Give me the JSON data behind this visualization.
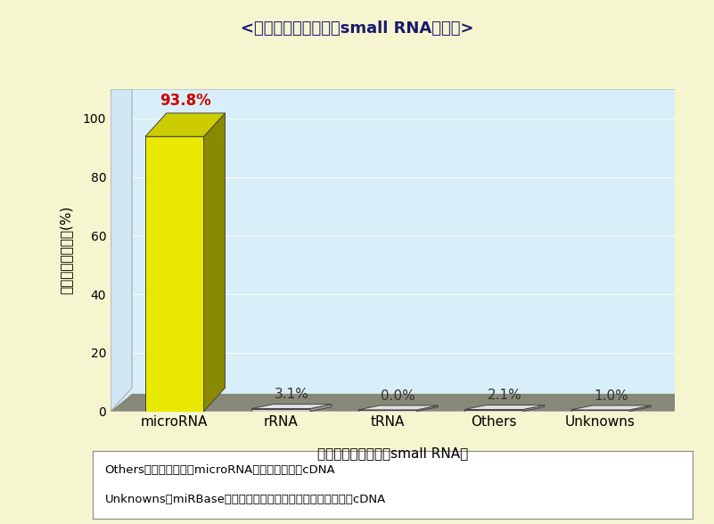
{
  "title": "<クローニングされたsmall RNAの内訳>",
  "categories": [
    "microRNA",
    "rRNA",
    "tRNA",
    "Others",
    "Unknowns"
  ],
  "values": [
    93.8,
    3.1,
    0.0,
    2.1,
    1.0
  ],
  "value_labels": [
    "93.8%",
    "3.1%",
    "0.0%",
    "2.1%",
    "1.0%"
  ],
  "xlabel": "クローニングされたsmall RNA種",
  "ylabel": "クローニング比率(%)",
  "ylim_max": 110,
  "yticks": [
    0,
    20,
    40,
    60,
    80,
    100
  ],
  "bar_color_front": "#e8e800",
  "bar_color_top": "#cccc00",
  "bar_color_side": "#8a8a00",
  "small_bar_color_front": "#cccccc",
  "small_bar_color_top": "#e0e0e0",
  "small_bar_color_side": "#999999",
  "background_color": "#f5f5d0",
  "plot_bg_color": "#d8eef8",
  "wall_left_color": "#d0e8f5",
  "floor_color": "#888878",
  "title_color": "#1a1a6e",
  "label_color_main": "#cc0000",
  "label_color_small": "#333333",
  "annotation_line1": "Others：他の動物種のmicroRNAと相同性を持つcDNA",
  "annotation_line2": "Unknowns：miRBaseには未登録だが、ゲノム配列と一致するcDNA"
}
